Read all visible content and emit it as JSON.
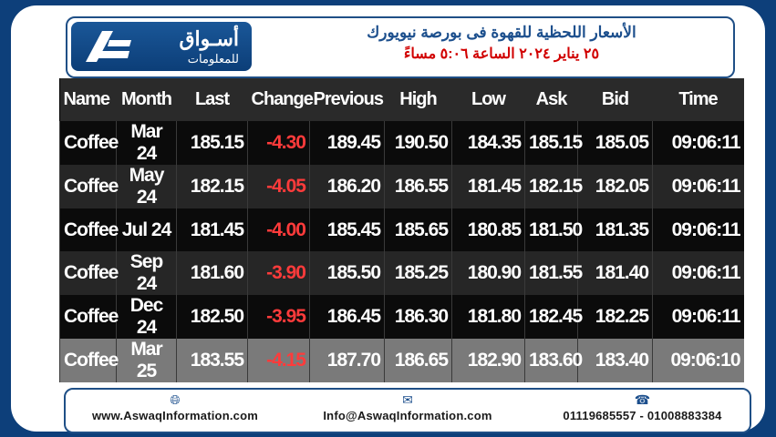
{
  "header": {
    "logo_ar": "أسـواق",
    "logo_sub": "للمعلومات",
    "title_line1": "الأسعار اللحظية للقهوة فى بورصة نيويورك",
    "title_line2": "٢٥ يناير ٢٠٢٤ الساعة ٥:٠٦ مساءً"
  },
  "table": {
    "columns": [
      "Name",
      "Month",
      "Last",
      "Change",
      "Previous",
      "High",
      "Low",
      "Ask",
      "Bid",
      "Time"
    ],
    "rows": [
      [
        "Coffee",
        "Mar 24",
        "185.15",
        "-4.30",
        "189.45",
        "190.50",
        "184.35",
        "185.15",
        "185.05",
        "09:06:11"
      ],
      [
        "Coffee",
        "May 24",
        "182.15",
        "-4.05",
        "186.20",
        "186.55",
        "181.45",
        "182.15",
        "182.05",
        "09:06:11"
      ],
      [
        "Coffee",
        "Jul 24",
        "181.45",
        "-4.00",
        "185.45",
        "185.65",
        "180.85",
        "181.50",
        "181.35",
        "09:06:11"
      ],
      [
        "Coffee",
        "Sep 24",
        "181.60",
        "-3.90",
        "185.50",
        "185.25",
        "180.90",
        "181.55",
        "181.40",
        "09:06:11"
      ],
      [
        "Coffee",
        "Dec 24",
        "182.50",
        "-3.95",
        "186.45",
        "186.30",
        "181.80",
        "182.45",
        "182.25",
        "09:06:11"
      ],
      [
        "Coffee",
        "Mar 25",
        "183.55",
        "-4.15",
        "187.70",
        "186.65",
        "182.90",
        "183.60",
        "183.40",
        "09:06:10"
      ]
    ]
  },
  "footer": {
    "website": "www.AswaqInformation.com",
    "email": "Info@AswaqInformation.com",
    "phones": "01119685557 - 01008883384",
    "icons": [
      "globe-icon",
      "mail-icon",
      "phone-icon"
    ]
  },
  "colors": {
    "background": "#0d3f7a",
    "negative": "#ff3b3b",
    "title_red": "#d10000",
    "title_blue": "#1c4f8d"
  }
}
